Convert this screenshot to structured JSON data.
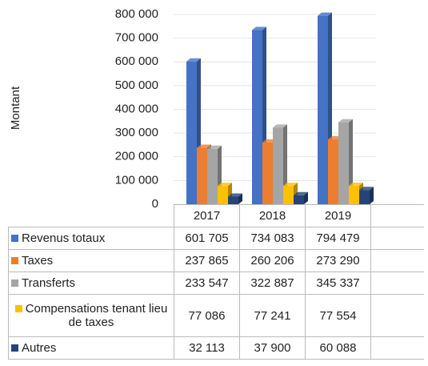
{
  "chart_data": {
    "type": "bar",
    "ylabel": "Montant",
    "categories": [
      "2017",
      "2018",
      "2019"
    ],
    "series": [
      {
        "name": "Revenus totaux",
        "color": "#4472c4",
        "values": [
          601705,
          734083,
          794479
        ],
        "value_labels": [
          "601 705",
          "734 083",
          "794 479"
        ]
      },
      {
        "name": "Taxes",
        "color": "#ed7d31",
        "values": [
          237865,
          260206,
          273290
        ],
        "value_labels": [
          "237 865",
          "260 206",
          "273 290"
        ]
      },
      {
        "name": "Transferts",
        "color": "#a5a5a5",
        "values": [
          233547,
          322887,
          345337
        ],
        "value_labels": [
          "233 547",
          "322 887",
          "345 337"
        ]
      },
      {
        "name": "Compensations tenant lieu de taxes",
        "color": "#ffc000",
        "values": [
          77086,
          77241,
          77554
        ],
        "value_labels": [
          "77 086",
          "77 241",
          "77 554"
        ]
      },
      {
        "name": "Autres",
        "color": "#264478",
        "values": [
          32113,
          37900,
          60088
        ],
        "value_labels": [
          "32 113",
          "37 900",
          "60 088"
        ]
      }
    ],
    "ylim": [
      0,
      800000
    ],
    "yticks": [
      0,
      {
        "value": 100000,
        "label": "100 000"
      },
      {
        "value": 200000,
        "label": "200 000"
      },
      {
        "value": 300000,
        "label": "300 000"
      },
      {
        "value": 400000,
        "label": "400 000"
      },
      {
        "value": 500000,
        "label": "500 000"
      },
      {
        "value": 600000,
        "label": "600 000"
      },
      {
        "value": 700000,
        "label": "700 000"
      },
      {
        "value": 800000,
        "label": "800 000"
      }
    ],
    "grid": true
  }
}
